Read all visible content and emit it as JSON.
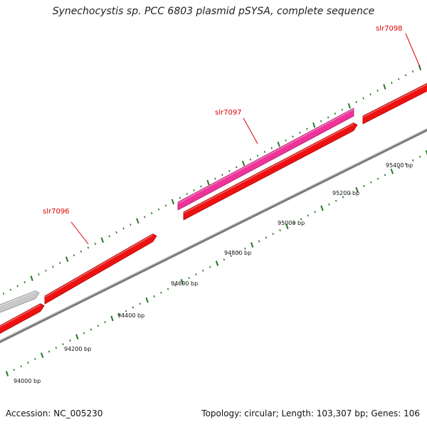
{
  "title": "Synechocystis sp. PCC 6803 plasmid pSYSA, complete sequence",
  "accession_text": "Accession: NC_005230",
  "summary_text": "Topology: circular; Length: 103,307 bp; Genes: 106",
  "colors": {
    "gene_red": "#ee1111",
    "gene_red_dark": "#aa0000",
    "gene_magenta": "#ee3399",
    "gene_magenta_dark": "#b01a6c",
    "gene_grey": "#c8c8c8",
    "gene_grey_dark": "#909090",
    "backbone": "#7a7a7a",
    "tick_green": "#227722",
    "label_red": "#dd0000"
  },
  "ticks": [
    {
      "position_bp": 94000,
      "label": "94000 bp"
    },
    {
      "position_bp": 94200,
      "label": "94200 bp"
    },
    {
      "position_bp": 94400,
      "label": "94400 bp"
    },
    {
      "position_bp": 94600,
      "label": "94600 bp"
    },
    {
      "position_bp": 94800,
      "label": "94800 bp"
    },
    {
      "position_bp": 95000,
      "label": "95000 bp"
    },
    {
      "position_bp": 95200,
      "label": "95200 bp"
    },
    {
      "position_bp": 95400,
      "label": "95400 bp"
    }
  ],
  "genes": [
    {
      "name": "slr7096",
      "label": "slr7096"
    },
    {
      "name": "slr7097",
      "label": "slr7097"
    },
    {
      "name": "slr7098",
      "label": "slr7098"
    }
  ]
}
